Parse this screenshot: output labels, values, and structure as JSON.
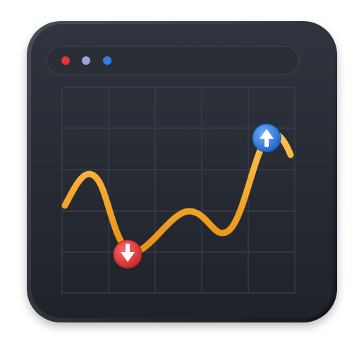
{
  "window": {
    "traffic_lights": [
      {
        "name": "red-dot",
        "color": "#e0353a"
      },
      {
        "name": "lavender-dot",
        "color": "#9aa4d6"
      },
      {
        "name": "blue-dot",
        "color": "#2f7fe6"
      }
    ],
    "body_color": "#262a33",
    "grid_line_color": "#3b404b"
  },
  "chart_data": {
    "type": "line",
    "grid": true,
    "line_color": "#f5a623",
    "markers": [
      {
        "name": "low-point-marker",
        "color": "#e23b3b",
        "icon": "arrow-down-icon"
      },
      {
        "name": "high-point-marker",
        "color": "#2f7fe6",
        "icon": "arrow-up-icon"
      }
    ]
  }
}
